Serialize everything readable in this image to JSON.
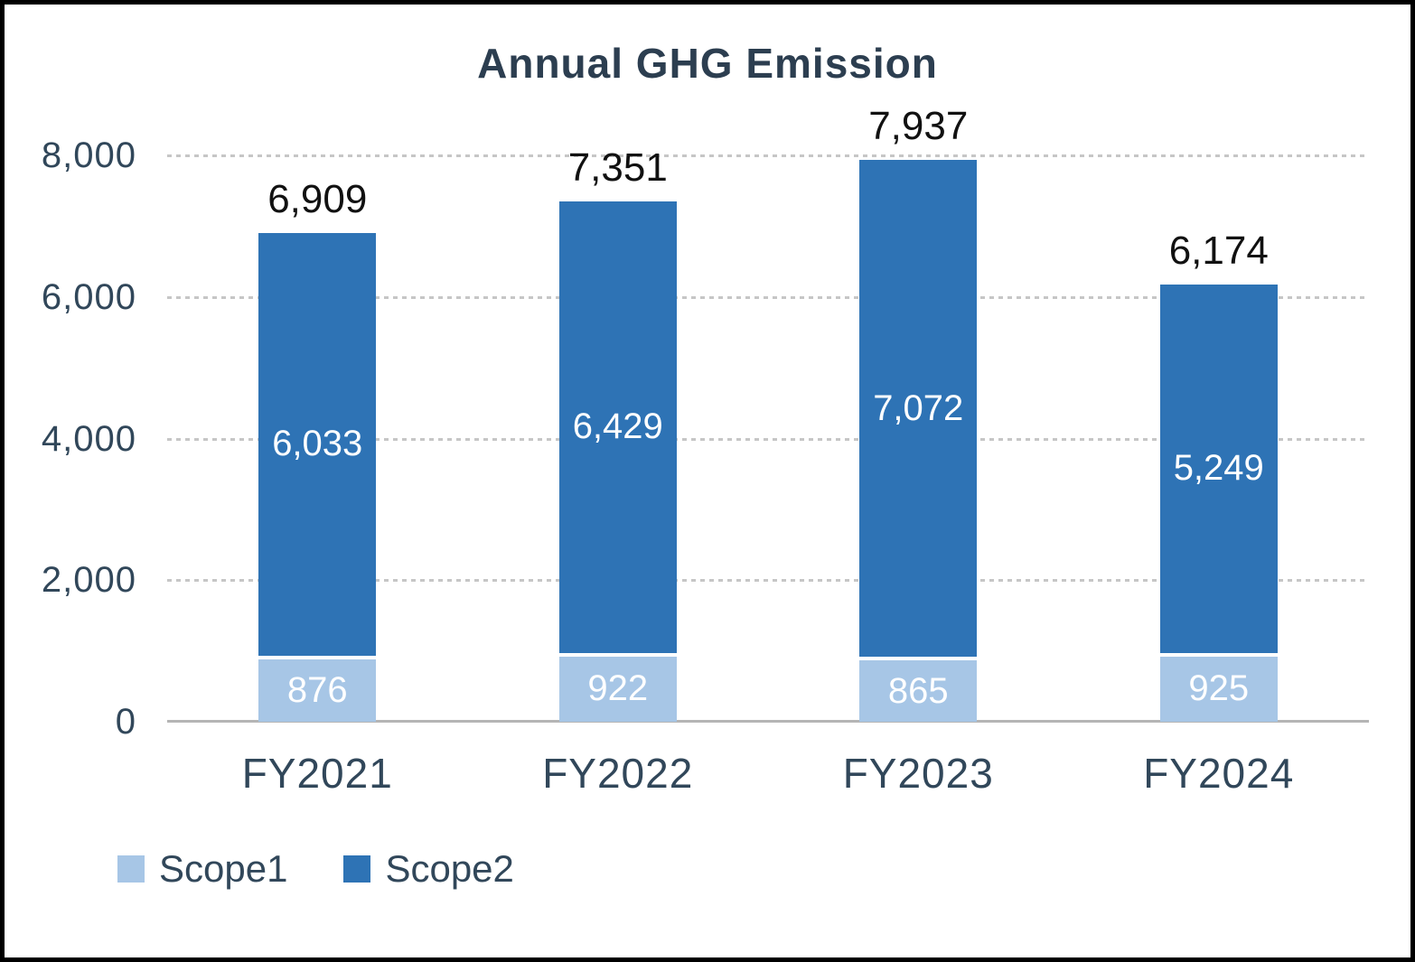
{
  "chart_data": {
    "type": "bar",
    "stacked": true,
    "title": "Annual GHG Emission",
    "categories": [
      "FY2021",
      "FY2022",
      "FY2023",
      "FY2024"
    ],
    "series": [
      {
        "name": "Scope1",
        "color": "#a7c6e6",
        "values": [
          876,
          922,
          865,
          925
        ],
        "labels": [
          "876",
          "922",
          "865",
          "925"
        ]
      },
      {
        "name": "Scope2",
        "color": "#2e73b5",
        "values": [
          6033,
          6429,
          7072,
          5249
        ],
        "labels": [
          "6,033",
          "6,429",
          "7,072",
          "5,249"
        ]
      }
    ],
    "totals": {
      "values": [
        6909,
        7351,
        7937,
        6174
      ],
      "labels": [
        "6,909",
        "7,351",
        "7,937",
        "6,174"
      ]
    },
    "ylim": [
      0,
      8000
    ],
    "yticks": [
      {
        "value": 0,
        "label": "0"
      },
      {
        "value": 2000,
        "label": "2,000"
      },
      {
        "value": 4000,
        "label": "4,000"
      },
      {
        "value": 6000,
        "label": "6,000"
      },
      {
        "value": 8000,
        "label": "8,000"
      }
    ],
    "grid": "horizontal-dotted",
    "legend": {
      "position": "bottom-left",
      "entries": [
        "Scope1",
        "Scope2"
      ]
    },
    "colors": {
      "scope1": "#a7c6e6",
      "scope2": "#2e73b5",
      "title_text": "#2c3e50",
      "axis_text": "#31475a",
      "total_label_text": "#111111",
      "bar_label_text": "#ffffff"
    }
  }
}
